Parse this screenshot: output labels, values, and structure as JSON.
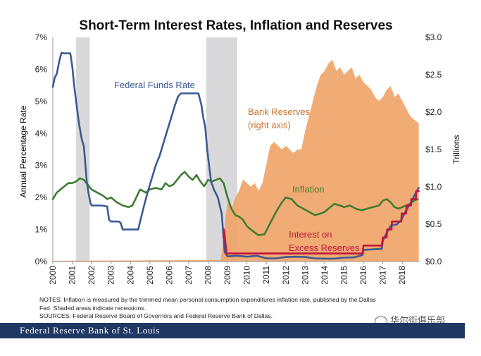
{
  "chart_data": {
    "type": "line",
    "title": "Short-Term Interest Rates, Inflation and Reserves",
    "ylabel": "Annual Percentage Rate",
    "ylabel_right": "Trillions",
    "ylim": [
      0,
      7
    ],
    "ylim_right": [
      0,
      3.0
    ],
    "xlim": [
      2000,
      2018.9
    ],
    "y_ticks": [
      "0%",
      "1%",
      "2%",
      "3%",
      "4%",
      "5%",
      "6%",
      "7%"
    ],
    "y_ticks_right": [
      "$0.0",
      "$0.5",
      "$1.0",
      "$1.5",
      "$2.0",
      "$2.5",
      "$3.0"
    ],
    "x_ticks": [
      "2000",
      "2001",
      "2002",
      "2003",
      "2004",
      "2005",
      "2006",
      "2007",
      "2008",
      "2009",
      "2010",
      "2011",
      "2012",
      "2013",
      "2014",
      "2015",
      "2016",
      "2017",
      "2018"
    ],
    "recessions": [
      [
        2001.2,
        2001.9
      ],
      [
        2007.9,
        2009.5
      ]
    ],
    "series": [
      {
        "name": "Federal Funds Rate",
        "color": "#3a5a93",
        "axis": "left",
        "x": [
          2000.0,
          2000.1,
          2000.2,
          2000.35,
          2000.45,
          2000.55,
          2000.7,
          2000.9,
          2001.0,
          2001.1,
          2001.2,
          2001.35,
          2001.5,
          2001.6,
          2001.75,
          2001.85,
          2001.95,
          2002.0,
          2002.5,
          2002.8,
          2002.9,
          2003.0,
          2003.4,
          2003.5,
          2003.6,
          2004.0,
          2004.4,
          2004.5,
          2004.7,
          2004.9,
          2005.1,
          2005.3,
          2005.5,
          2005.7,
          2005.9,
          2006.1,
          2006.3,
          2006.45,
          2006.6,
          2007.0,
          2007.5,
          2007.65,
          2007.75,
          2007.85,
          2007.95,
          2008.05,
          2008.15,
          2008.3,
          2008.5,
          2008.7,
          2008.85,
          2009.0,
          2009.5,
          2010.0,
          2010.5,
          2011.0,
          2011.5,
          2012.0,
          2012.5,
          2013.0,
          2013.5,
          2014.0,
          2014.5,
          2015.0,
          2015.5,
          2015.95,
          2016.0,
          2016.5,
          2016.95,
          2017.0,
          2017.2,
          2017.45,
          2017.7,
          2017.95,
          2018.2,
          2018.45,
          2018.7,
          2018.85
        ],
        "values": [
          5.45,
          5.75,
          5.85,
          6.3,
          6.52,
          6.5,
          6.5,
          6.5,
          6.1,
          5.5,
          5.0,
          4.3,
          3.8,
          3.6,
          2.5,
          2.1,
          1.8,
          1.75,
          1.75,
          1.72,
          1.3,
          1.25,
          1.25,
          1.2,
          1.0,
          1.0,
          1.0,
          1.25,
          1.75,
          2.2,
          2.6,
          3.0,
          3.3,
          3.7,
          4.1,
          4.5,
          4.9,
          5.15,
          5.25,
          5.25,
          5.25,
          4.9,
          4.5,
          4.2,
          3.5,
          3.0,
          2.5,
          2.25,
          2.0,
          1.5,
          0.3,
          0.16,
          0.18,
          0.15,
          0.18,
          0.1,
          0.1,
          0.14,
          0.15,
          0.14,
          0.1,
          0.09,
          0.09,
          0.12,
          0.13,
          0.2,
          0.36,
          0.38,
          0.4,
          0.65,
          0.9,
          1.15,
          1.15,
          1.3,
          1.6,
          1.85,
          2.15,
          2.3
        ]
      },
      {
        "name": "Inflation",
        "color": "#3e7d31",
        "axis": "left",
        "x": [
          2000.0,
          2000.2,
          2000.4,
          2000.6,
          2000.8,
          2001.0,
          2001.2,
          2001.4,
          2001.6,
          2001.8,
          2002.0,
          2002.3,
          2002.6,
          2002.8,
          2003.0,
          2003.3,
          2003.6,
          2003.9,
          2004.1,
          2004.3,
          2004.5,
          2004.8,
          2005.0,
          2005.3,
          2005.6,
          2005.8,
          2006.0,
          2006.2,
          2006.4,
          2006.6,
          2006.8,
          2007.0,
          2007.2,
          2007.4,
          2007.6,
          2007.8,
          2008.0,
          2008.2,
          2008.4,
          2008.6,
          2008.8,
          2009.0,
          2009.2,
          2009.4,
          2009.6,
          2009.8,
          2010.0,
          2010.3,
          2010.6,
          2010.9,
          2011.2,
          2011.5,
          2011.8,
          2012.0,
          2012.3,
          2012.6,
          2012.9,
          2013.2,
          2013.5,
          2013.8,
          2014.0,
          2014.2,
          2014.5,
          2014.8,
          2015.0,
          2015.3,
          2015.6,
          2015.9,
          2016.2,
          2016.5,
          2016.8,
          2017.0,
          2017.2,
          2017.4,
          2017.6,
          2017.8,
          2018.0,
          2018.2,
          2018.4,
          2018.6,
          2018.8
        ],
        "values": [
          1.95,
          2.15,
          2.25,
          2.35,
          2.45,
          2.45,
          2.5,
          2.6,
          2.55,
          2.4,
          2.25,
          2.15,
          2.05,
          1.95,
          2.0,
          1.85,
          1.75,
          1.7,
          1.75,
          2.0,
          2.25,
          2.15,
          2.25,
          2.3,
          2.25,
          2.45,
          2.35,
          2.4,
          2.55,
          2.7,
          2.8,
          2.65,
          2.55,
          2.7,
          2.5,
          2.35,
          2.55,
          2.5,
          2.55,
          2.6,
          2.45,
          2.0,
          1.65,
          1.45,
          1.4,
          1.3,
          1.1,
          0.95,
          0.82,
          0.85,
          1.2,
          1.55,
          1.85,
          2.0,
          1.95,
          1.75,
          1.65,
          1.55,
          1.45,
          1.5,
          1.55,
          1.65,
          1.8,
          1.75,
          1.7,
          1.75,
          1.65,
          1.6,
          1.65,
          1.7,
          1.75,
          1.9,
          1.95,
          1.85,
          1.7,
          1.65,
          1.7,
          1.75,
          1.8,
          1.9,
          1.95
        ]
      },
      {
        "name": "Interest on Excess Reserves",
        "color": "#c0143c",
        "axis": "left",
        "x": [
          2008.8,
          2008.82,
          2008.95,
          2009.0,
          2015.96,
          2016.0,
          2016.95,
          2017.0,
          2017.2,
          2017.22,
          2017.45,
          2017.47,
          2017.95,
          2017.97,
          2018.2,
          2018.22,
          2018.45,
          2018.47,
          2018.7,
          2018.72,
          2018.85
        ],
        "values": [
          0.75,
          1.0,
          0.25,
          0.25,
          0.25,
          0.5,
          0.5,
          0.75,
          0.75,
          1.0,
          1.0,
          1.25,
          1.25,
          1.5,
          1.5,
          1.75,
          1.75,
          1.95,
          1.95,
          2.2,
          2.2
        ]
      },
      {
        "name": "Bank Reserves",
        "color": "#f0a468",
        "axis": "right",
        "type": "area",
        "x": [
          2000.0,
          2008.65,
          2008.8,
          2008.9,
          2009.0,
          2009.2,
          2009.4,
          2009.6,
          2009.8,
          2010.0,
          2010.2,
          2010.4,
          2010.6,
          2010.8,
          2011.0,
          2011.2,
          2011.4,
          2011.6,
          2011.8,
          2012.0,
          2012.2,
          2012.4,
          2012.6,
          2012.8,
          2013.0,
          2013.2,
          2013.4,
          2013.6,
          2013.8,
          2014.0,
          2014.2,
          2014.4,
          2014.6,
          2014.8,
          2015.0,
          2015.2,
          2015.4,
          2015.6,
          2015.8,
          2016.0,
          2016.2,
          2016.4,
          2016.6,
          2016.8,
          2017.0,
          2017.2,
          2017.4,
          2017.6,
          2017.8,
          2018.0,
          2018.2,
          2018.4,
          2018.6,
          2018.85
        ],
        "values": [
          0.01,
          0.02,
          0.3,
          0.6,
          0.8,
          0.7,
          0.85,
          0.95,
          1.1,
          1.05,
          1.0,
          1.05,
          0.95,
          1.05,
          1.3,
          1.55,
          1.6,
          1.55,
          1.5,
          1.55,
          1.5,
          1.45,
          1.5,
          1.5,
          1.75,
          1.95,
          2.15,
          2.35,
          2.5,
          2.55,
          2.65,
          2.7,
          2.55,
          2.6,
          2.5,
          2.55,
          2.6,
          2.45,
          2.5,
          2.4,
          2.35,
          2.3,
          2.2,
          2.15,
          2.2,
          2.3,
          2.35,
          2.2,
          2.25,
          2.15,
          2.05,
          1.95,
          1.9,
          1.85
        ]
      }
    ],
    "annotations": {
      "fed_funds": "Federal  Funds Rate",
      "reserves_line1": "Bank Reserves",
      "reserves_line2": "(right axis)",
      "inflation": "Inflation",
      "ioer_line1": "Interest on",
      "ioer_line2": "Excess Reserves"
    }
  },
  "notes": {
    "line1": "NOTES: Inflation is measured by the trimmed mean personal consumption expenditures inflation rate, published by the Dallas",
    "line2": "Fed. Shaded areas indicate recessions.",
    "line3": "SOURCES: Federal Reserve Board of Governors and Federal Reserve Bank of Dallas."
  },
  "footer": {
    "text": "Federal Reserve Bank of St. Louis"
  },
  "watermark": {
    "text": "华尔街俱乐部"
  },
  "colors": {
    "recession": "#d9d9db",
    "footer_bg": "#1f3763",
    "fed_funds": "#3a5a93",
    "inflation": "#3e7d31",
    "ioer": "#c0143c",
    "reserves": "#f0a468"
  }
}
